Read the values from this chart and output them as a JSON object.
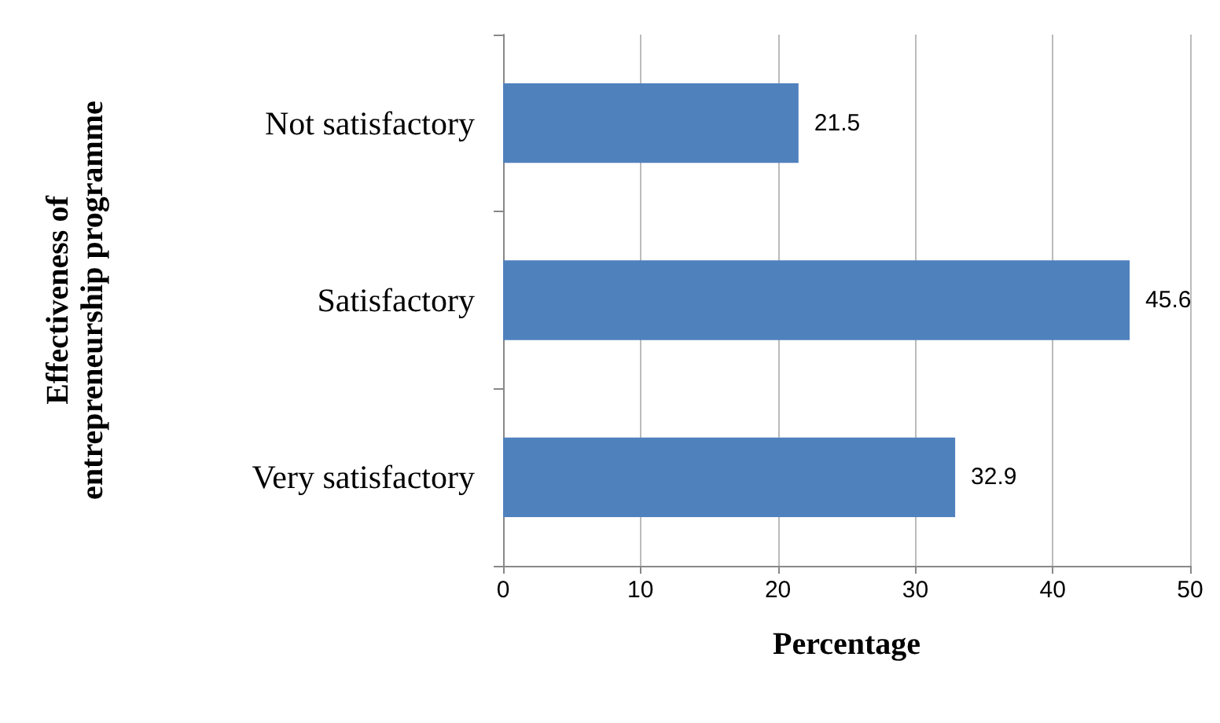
{
  "chart_data": {
    "type": "bar",
    "orientation": "horizontal",
    "categories": [
      "Not satisfactory",
      "Satisfactory",
      "Very satisfactory"
    ],
    "values": [
      21.5,
      45.6,
      32.9
    ],
    "color": "#4f81bd",
    "xlabel": "Percentage",
    "ylabel": "Effectiveness of\nentrepreneurship programme",
    "xlim": [
      0,
      50
    ],
    "xticks": [
      0,
      10,
      20,
      30,
      40,
      50
    ],
    "grid": "x",
    "data_labels": true
  }
}
